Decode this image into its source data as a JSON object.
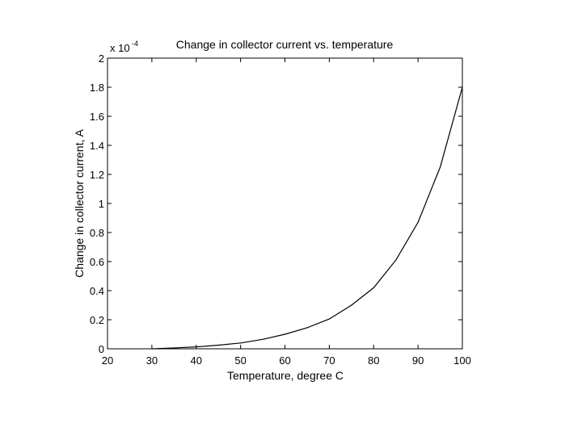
{
  "chart_data": {
    "type": "line",
    "title": "Change in collector current vs. temperature",
    "xlabel": "Temperature, degree C",
    "ylabel": "Change in collector current, A",
    "y_multiplier": {
      "base": "x 10",
      "exponent": "-4"
    },
    "xlim": [
      20,
      100
    ],
    "ylim": [
      0,
      2
    ],
    "grid": false,
    "x_ticks": [
      "20",
      "30",
      "40",
      "50",
      "60",
      "70",
      "80",
      "90",
      "100"
    ],
    "y_ticks": [
      "0",
      "0.2",
      "0.4",
      "0.6",
      "0.8",
      "1",
      "1.2",
      "1.4",
      "1.6",
      "1.8",
      "2"
    ],
    "series": [
      {
        "x": [
          30,
          35,
          40,
          45,
          50,
          55,
          60,
          65,
          70,
          75,
          80,
          85,
          90,
          95,
          100
        ],
        "y": [
          0.0,
          0.006,
          0.013,
          0.025,
          0.04,
          0.065,
          0.1,
          0.145,
          0.205,
          0.3,
          0.42,
          0.61,
          0.87,
          1.25,
          1.8
        ]
      }
    ]
  }
}
